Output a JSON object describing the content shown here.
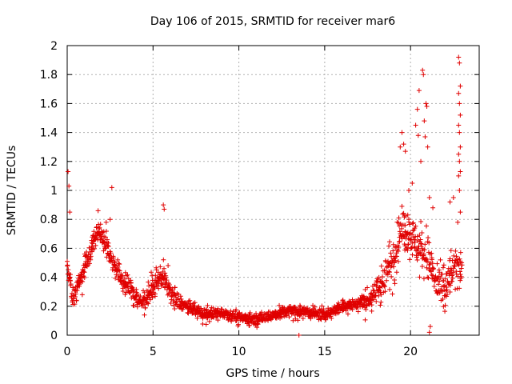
{
  "chart_data": {
    "type": "scatter",
    "title": "Day 106 of 2015, SRMTID for receiver mar6",
    "xlabel": "GPS time / hours",
    "ylabel": "SRMTID / TECUs",
    "xlim": [
      0,
      24
    ],
    "ylim": [
      0,
      2
    ],
    "xticks": [
      0,
      5,
      10,
      15,
      20
    ],
    "yticks": [
      0,
      0.2,
      0.4,
      0.6,
      0.8,
      1,
      1.2,
      1.4,
      1.6,
      1.8,
      2
    ],
    "xtick_labels": [
      "0",
      "5",
      "10",
      "15",
      "20"
    ],
    "ytick_labels": [
      "0",
      "0.2",
      "0.4",
      "0.6",
      "0.8",
      "1",
      "1.2",
      "1.4",
      "1.6",
      "1.8",
      "2"
    ],
    "grid": true,
    "marker": "+",
    "color": "#e00000",
    "series": [
      {
        "name": "SRMTID",
        "trend_x": [
          0,
          0.3,
          0.7,
          1.2,
          1.8,
          2.3,
          2.7,
          3.2,
          3.8,
          4.3,
          5.0,
          5.5,
          6.0,
          6.5,
          7.0,
          8.0,
          9.0,
          10.0,
          11.0,
          12.0,
          13.0,
          14.0,
          15.0,
          16.0,
          17.0,
          17.8,
          18.5,
          19.0,
          19.5,
          20.0,
          20.5,
          21.0,
          21.5,
          22.0,
          22.5,
          23.0
        ],
        "trend_y": [
          0.5,
          0.25,
          0.35,
          0.55,
          0.72,
          0.62,
          0.5,
          0.38,
          0.3,
          0.22,
          0.32,
          0.42,
          0.3,
          0.22,
          0.2,
          0.14,
          0.16,
          0.12,
          0.11,
          0.14,
          0.17,
          0.16,
          0.14,
          0.2,
          0.22,
          0.26,
          0.4,
          0.55,
          0.75,
          0.7,
          0.6,
          0.55,
          0.35,
          0.3,
          0.45,
          0.5
        ],
        "points": [
          [
            0.05,
            1.13
          ],
          [
            0.1,
            1.03
          ],
          [
            0.15,
            0.85
          ],
          [
            5.6,
            0.9
          ],
          [
            5.65,
            0.87
          ],
          [
            2.6,
            1.02
          ],
          [
            2.5,
            0.8
          ],
          [
            1.8,
            0.86
          ],
          [
            19.5,
            1.4
          ],
          [
            19.6,
            1.32
          ],
          [
            19.4,
            1.3
          ],
          [
            19.7,
            1.27
          ],
          [
            20.3,
            1.45
          ],
          [
            20.4,
            1.56
          ],
          [
            20.5,
            1.69
          ],
          [
            20.45,
            1.38
          ],
          [
            20.7,
            1.83
          ],
          [
            20.75,
            1.8
          ],
          [
            20.9,
            1.6
          ],
          [
            20.95,
            1.58
          ],
          [
            20.8,
            1.48
          ],
          [
            20.85,
            1.37
          ],
          [
            21.0,
            1.3
          ],
          [
            20.6,
            1.2
          ],
          [
            19.9,
            1.0
          ],
          [
            20.1,
            1.05
          ],
          [
            21.1,
            0.95
          ],
          [
            21.3,
            0.88
          ],
          [
            22.3,
            0.92
          ],
          [
            22.5,
            0.95
          ],
          [
            22.8,
            1.92
          ],
          [
            22.85,
            1.88
          ],
          [
            22.9,
            1.72
          ],
          [
            22.8,
            1.67
          ],
          [
            22.85,
            1.6
          ],
          [
            22.9,
            1.52
          ],
          [
            22.8,
            1.45
          ],
          [
            22.85,
            1.4
          ],
          [
            22.9,
            1.3
          ],
          [
            22.8,
            1.25
          ],
          [
            22.85,
            1.2
          ],
          [
            22.9,
            1.13
          ],
          [
            22.8,
            1.1
          ],
          [
            22.85,
            1.0
          ],
          [
            22.9,
            0.85
          ],
          [
            22.75,
            0.78
          ],
          [
            13.5,
            0.0
          ],
          [
            21.1,
            0.02
          ],
          [
            21.15,
            0.06
          ]
        ]
      }
    ]
  }
}
